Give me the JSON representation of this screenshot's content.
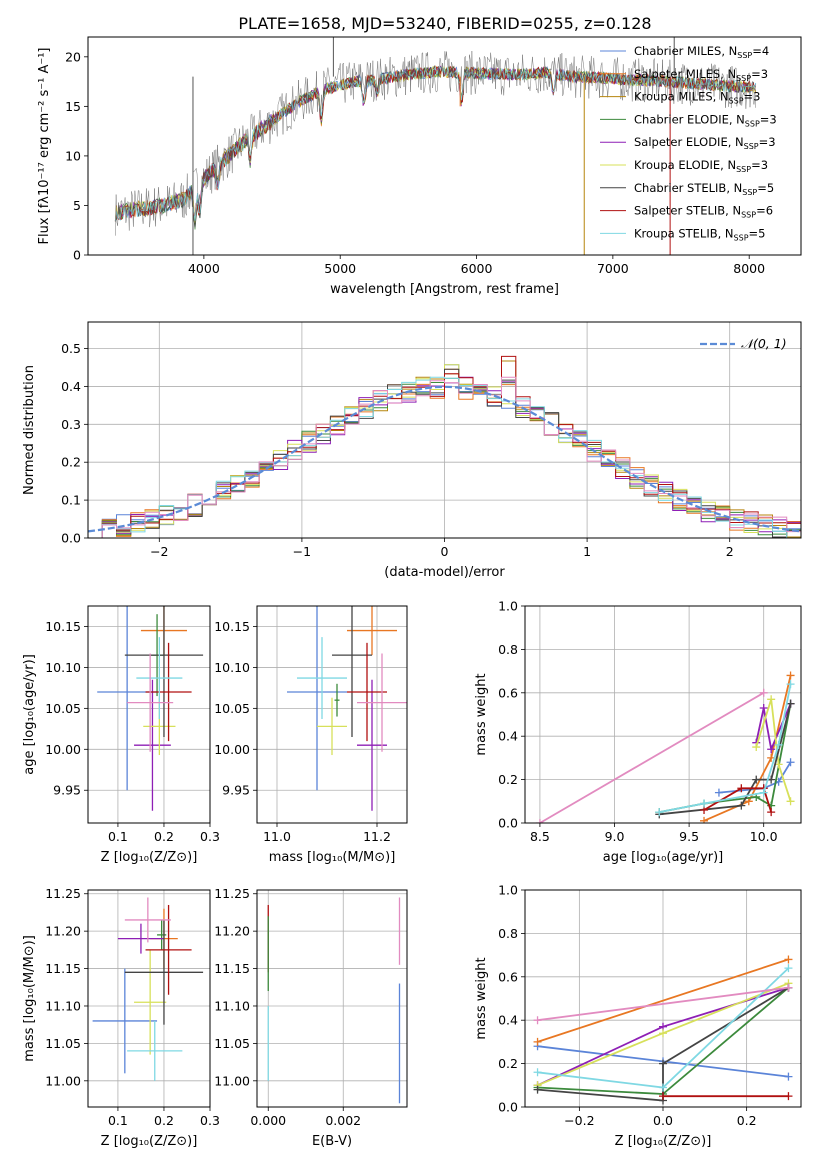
{
  "figure_title": "PLATE=1658, MJD=53240, FIBERID=0255, z=0.128",
  "series_colors": [
    "#5b84d8",
    "#e87722",
    "#b6850d",
    "#3c8a3c",
    "#8e1fb5",
    "#d7e05a",
    "#444444",
    "#b01010",
    "#7fd8e3",
    "#e28bc0"
  ],
  "chart_data": [
    {
      "id": "spectrum",
      "type": "line",
      "title": "PLATE=1658, MJD=53240, FIBERID=0255, z=0.128",
      "xlabel": "wavelength [Angstrom, rest frame]",
      "ylabel": "Flux [fλ10⁻¹⁷ erg cm⁻² s⁻¹ A⁻¹]",
      "xlim": [
        3150,
        8380
      ],
      "ylim": [
        0,
        22
      ],
      "xticks": [
        4000,
        5000,
        6000,
        7000,
        8000
      ],
      "yticks": [
        0,
        5,
        10,
        15,
        20
      ],
      "legend_position": "upper-right",
      "series": [
        {
          "name": "Chabrier MILES, N_SSP=4",
          "label": "Chabrier MILES, N",
          "sub": "SSP",
          "suffix": "=4",
          "color": "#5b84d8"
        },
        {
          "name": "Salpeter MILES, N_SSP=3",
          "label": "Salpeter MILES, N",
          "sub": "SSP",
          "suffix": "=3",
          "color": "#e87722"
        },
        {
          "name": "Kroupa MILES, N_SSP=3",
          "label": "Kroupa MILES, N",
          "sub": "SSP",
          "suffix": "=3",
          "color": "#b6850d"
        },
        {
          "name": "Chabrier ELODIE, N_SSP=3",
          "label": "Chabrier ELODIE, N",
          "sub": "SSP",
          "suffix": "=3",
          "color": "#3c8a3c"
        },
        {
          "name": "Salpeter ELODIE, N_SSP=3",
          "label": "Salpeter ELODIE, N",
          "sub": "SSP",
          "suffix": "=3",
          "color": "#8e1fb5"
        },
        {
          "name": "Kroupa ELODIE, N_SSP=3",
          "label": "Kroupa ELODIE, N",
          "sub": "SSP",
          "suffix": "=3",
          "color": "#d7e05a"
        },
        {
          "name": "Chabrier STELIB, N_SSP=5",
          "label": "Chabrier STELIB, N",
          "sub": "SSP",
          "suffix": "=5",
          "color": "#444444"
        },
        {
          "name": "Salpeter STELIB, N_SSP=6",
          "label": "Salpeter STELIB, N",
          "sub": "SSP",
          "suffix": "=6",
          "color": "#b01010"
        },
        {
          "name": "Kroupa STELIB, N_SSP=5",
          "label": "Kroupa STELIB, N",
          "sub": "SSP",
          "suffix": "=5",
          "color": "#7fd8e3"
        }
      ],
      "continuum": [
        [
          3350,
          4.2
        ],
        [
          3500,
          4.6
        ],
        [
          3700,
          5.0
        ],
        [
          3850,
          5.6
        ],
        [
          3950,
          7.0
        ],
        [
          4100,
          9.0
        ],
        [
          4300,
          11.5
        ],
        [
          4500,
          13.5
        ],
        [
          4700,
          15.5
        ],
        [
          4900,
          16.8
        ],
        [
          5100,
          17.5
        ],
        [
          5300,
          17.8
        ],
        [
          5500,
          18.2
        ],
        [
          5700,
          18.5
        ],
        [
          5900,
          18.4
        ],
        [
          6100,
          18.3
        ],
        [
          6300,
          18.2
        ],
        [
          6500,
          18.4
        ],
        [
          6700,
          18.0
        ],
        [
          6900,
          17.9
        ],
        [
          7100,
          17.7
        ],
        [
          7300,
          17.6
        ],
        [
          7500,
          17.4
        ],
        [
          7700,
          17.2
        ],
        [
          7900,
          17.0
        ],
        [
          8050,
          16.9
        ]
      ]
    },
    {
      "id": "residuals",
      "type": "bar",
      "xlabel": "(data-model)/error",
      "ylabel": "Normed distribution",
      "xlim": [
        -2.5,
        2.5
      ],
      "ylim": [
        0,
        0.57
      ],
      "xticks": [
        -2,
        -1,
        0,
        1,
        2
      ],
      "yticks": [
        0.0,
        0.1,
        0.2,
        0.3,
        0.4,
        0.5
      ],
      "legend": "𝒩(0, 1)",
      "legend_position": "upper-right",
      "grid": true,
      "bin_width": 0.1
    },
    {
      "id": "age-vs-Z",
      "type": "scatter",
      "xlabel": "Z [log₁₀(Z/Z⊙)]",
      "ylabel": "age  [log₁₀(age/yr)]",
      "xlim": [
        0.035,
        0.3
      ],
      "ylim": [
        9.91,
        10.175
      ],
      "xticks": [
        0.1,
        0.2,
        0.3
      ],
      "yticks": [
        9.95,
        10.0,
        10.05,
        10.1,
        10.15
      ],
      "grid": true,
      "points": [
        {
          "x": 0.12,
          "y": 10.07,
          "xerr": 0.065,
          "yerr": 0.12,
          "color": "#5b84d8"
        },
        {
          "x": 0.2,
          "y": 10.145,
          "xerr": 0.05,
          "yerr": 0.03,
          "color": "#e87722"
        },
        {
          "x": 0.185,
          "y": 10.115,
          "xerr": 0.015,
          "yerr": 0.05,
          "color": "#3c8a3c"
        },
        {
          "x": 0.175,
          "y": 10.005,
          "xerr": 0.04,
          "yerr": 0.08,
          "color": "#8e1fb5"
        },
        {
          "x": 0.19,
          "y": 10.028,
          "xerr": 0.035,
          "yerr": 0.035,
          "color": "#d7e05a"
        },
        {
          "x": 0.2,
          "y": 10.115,
          "xerr": 0.085,
          "yerr": 0.1,
          "color": "#444444"
        },
        {
          "x": 0.21,
          "y": 10.07,
          "xerr": 0.05,
          "yerr": 0.06,
          "color": "#b01010"
        },
        {
          "x": 0.19,
          "y": 10.087,
          "xerr": 0.05,
          "yerr": 0.05,
          "color": "#7fd8e3"
        },
        {
          "x": 0.17,
          "y": 10.057,
          "xerr": 0.05,
          "yerr": 0.06,
          "color": "#e28bc0"
        }
      ]
    },
    {
      "id": "age-vs-mass",
      "type": "scatter",
      "xlabel": "mass [log₁₀(M/M⊙)]",
      "ylabel": "",
      "xlim": [
        10.96,
        11.26
      ],
      "ylim": [
        9.91,
        10.175
      ],
      "xticks": [
        11.0,
        11.2
      ],
      "yticks": [
        9.95,
        10.0,
        10.05,
        10.1,
        10.15
      ],
      "grid": true,
      "points": [
        {
          "x": 11.08,
          "y": 10.07,
          "xerr": 0.06,
          "yerr": 0.12,
          "color": "#5b84d8"
        },
        {
          "x": 11.19,
          "y": 10.145,
          "xerr": 0.05,
          "yerr": 0.03,
          "color": "#e87722"
        },
        {
          "x": 11.12,
          "y": 10.06,
          "xerr": 0.005,
          "yerr": 0.02,
          "color": "#3c8a3c"
        },
        {
          "x": 11.19,
          "y": 10.005,
          "xerr": 0.03,
          "yerr": 0.08,
          "color": "#8e1fb5"
        },
        {
          "x": 11.11,
          "y": 10.028,
          "xerr": 0.03,
          "yerr": 0.035,
          "color": "#d7e05a"
        },
        {
          "x": 11.15,
          "y": 10.115,
          "xerr": 0.04,
          "yerr": 0.1,
          "color": "#444444"
        },
        {
          "x": 11.18,
          "y": 10.07,
          "xerr": 0.04,
          "yerr": 0.06,
          "color": "#b01010"
        },
        {
          "x": 11.09,
          "y": 10.087,
          "xerr": 0.05,
          "yerr": 0.05,
          "color": "#7fd8e3"
        },
        {
          "x": 11.21,
          "y": 10.057,
          "xerr": 0.05,
          "yerr": 0.06,
          "color": "#e28bc0"
        }
      ]
    },
    {
      "id": "weight-vs-age",
      "type": "line",
      "xlabel": "age  [log₁₀(age/yr)]",
      "ylabel": "mass weight",
      "xlim": [
        8.4,
        10.25
      ],
      "ylim": [
        0,
        1.0
      ],
      "xticks": [
        8.5,
        9.0,
        9.5,
        10.0
      ],
      "yticks": [
        0.0,
        0.2,
        0.4,
        0.6,
        0.8,
        1.0
      ],
      "grid": true,
      "series": [
        {
          "color": "#5b84d8",
          "points": [
            [
              9.7,
              0.14
            ],
            [
              10.0,
              0.16
            ],
            [
              10.1,
              0.19
            ],
            [
              10.18,
              0.28
            ]
          ]
        },
        {
          "color": "#e87722",
          "points": [
            [
              9.6,
              0.01
            ],
            [
              9.9,
              0.1
            ],
            [
              10.05,
              0.3
            ],
            [
              10.18,
              0.68
            ]
          ]
        },
        {
          "color": "#3c8a3c",
          "points": [
            [
              9.3,
              0.05
            ],
            [
              9.6,
              0.09
            ],
            [
              9.95,
              0.12
            ],
            [
              10.05,
              0.08
            ],
            [
              10.18,
              0.55
            ]
          ]
        },
        {
          "color": "#8e1fb5",
          "points": [
            [
              9.95,
              0.37
            ],
            [
              10.0,
              0.53
            ],
            [
              10.05,
              0.34
            ],
            [
              10.18,
              0.55
            ]
          ]
        },
        {
          "color": "#d7e05a",
          "points": [
            [
              9.95,
              0.35
            ],
            [
              10.05,
              0.57
            ],
            [
              10.1,
              0.27
            ],
            [
              10.18,
              0.1
            ]
          ]
        },
        {
          "color": "#444444",
          "points": [
            [
              9.3,
              0.04
            ],
            [
              9.85,
              0.08
            ],
            [
              9.95,
              0.2
            ],
            [
              10.05,
              0.2
            ],
            [
              10.18,
              0.55
            ]
          ]
        },
        {
          "color": "#b01010",
          "points": [
            [
              9.6,
              0.06
            ],
            [
              9.85,
              0.16
            ],
            [
              10.0,
              0.16
            ],
            [
              10.05,
              0.05
            ]
          ]
        },
        {
          "color": "#7fd8e3",
          "points": [
            [
              9.3,
              0.05
            ],
            [
              9.6,
              0.09
            ],
            [
              10.0,
              0.14
            ],
            [
              10.1,
              0.36
            ],
            [
              10.18,
              0.64
            ]
          ]
        },
        {
          "color": "#e28bc0",
          "points": [
            [
              8.5,
              0.0
            ],
            [
              10.0,
              0.6
            ]
          ]
        }
      ]
    },
    {
      "id": "mass-vs-Z",
      "type": "scatter",
      "xlabel": "Z [log₁₀(Z/Z⊙)]",
      "ylabel": "mass [log₁₀(M/M⊙)]",
      "xlim": [
        0.035,
        0.3
      ],
      "ylim": [
        10.965,
        11.255
      ],
      "xticks": [
        0.1,
        0.2,
        0.3
      ],
      "yticks": [
        11.0,
        11.05,
        11.1,
        11.15,
        11.2,
        11.25
      ],
      "grid": true,
      "points": [
        {
          "x": 0.115,
          "y": 11.08,
          "xerr": 0.07,
          "yerr": 0.07,
          "color": "#5b84d8"
        },
        {
          "x": 0.2,
          "y": 11.19,
          "xerr": 0.03,
          "yerr": 0.04,
          "color": "#e87722"
        },
        {
          "x": 0.195,
          "y": 11.195,
          "xerr": 0.01,
          "yerr": 0.02,
          "color": "#3c8a3c"
        },
        {
          "x": 0.15,
          "y": 11.19,
          "xerr": 0.05,
          "yerr": 0.02,
          "color": "#8e1fb5"
        },
        {
          "x": 0.17,
          "y": 11.105,
          "xerr": 0.035,
          "yerr": 0.07,
          "color": "#d7e05a"
        },
        {
          "x": 0.2,
          "y": 11.145,
          "xerr": 0.085,
          "yerr": 0.07,
          "color": "#444444"
        },
        {
          "x": 0.21,
          "y": 11.175,
          "xerr": 0.05,
          "yerr": 0.06,
          "color": "#b01010"
        },
        {
          "x": 0.18,
          "y": 11.04,
          "xerr": 0.06,
          "yerr": 0.04,
          "color": "#7fd8e3"
        },
        {
          "x": 0.165,
          "y": 11.215,
          "xerr": 0.05,
          "yerr": 0.03,
          "color": "#e28bc0"
        }
      ]
    },
    {
      "id": "mass-vs-ebv",
      "type": "scatter",
      "xlabel": "E(B-V)",
      "ylabel": "",
      "xlim": [
        -0.0003,
        0.0037
      ],
      "ylim": [
        10.965,
        11.255
      ],
      "xticks": [
        0.0,
        0.002
      ],
      "yticks": [
        11.0,
        11.05,
        11.1,
        11.15,
        11.2,
        11.25
      ],
      "grid": true,
      "points": [
        {
          "x": 0.0035,
          "y": 11.05,
          "xerr": 0,
          "yerr": 0.08,
          "color": "#5b84d8"
        },
        {
          "x": 0.0,
          "y": 11.19,
          "xerr": 0,
          "yerr": 0.045,
          "color": "#b01010"
        },
        {
          "x": 0.0,
          "y": 11.17,
          "xerr": 0,
          "yerr": 0.05,
          "color": "#3c8a3c"
        },
        {
          "x": 0.0,
          "y": 11.05,
          "xerr": 0,
          "yerr": 0.05,
          "color": "#7fd8e3"
        },
        {
          "x": 0.0035,
          "y": 11.2,
          "xerr": 0,
          "yerr": 0.045,
          "color": "#e28bc0"
        }
      ]
    },
    {
      "id": "weight-vs-Z",
      "type": "line",
      "xlabel": "Z [log₁₀(Z/Z⊙)]",
      "ylabel": "mass weight",
      "xlim": [
        -0.33,
        0.33
      ],
      "ylim": [
        0,
        1.0
      ],
      "xticks": [
        -0.2,
        0.0,
        0.2
      ],
      "yticks": [
        0.0,
        0.2,
        0.4,
        0.6,
        0.8,
        1.0
      ],
      "grid": true,
      "series": [
        {
          "color": "#5b84d8",
          "points": [
            [
              -0.3,
              0.28
            ],
            [
              0.0,
              0.21
            ],
            [
              0.3,
              0.14
            ]
          ]
        },
        {
          "color": "#e87722",
          "points": [
            [
              -0.3,
              0.3
            ],
            [
              0.3,
              0.68
            ]
          ]
        },
        {
          "color": "#3c8a3c",
          "points": [
            [
              -0.3,
              0.09
            ],
            [
              0.0,
              0.06
            ],
            [
              0.3,
              0.55
            ]
          ]
        },
        {
          "color": "#8e1fb5",
          "points": [
            [
              -0.3,
              0.1
            ],
            [
              0.0,
              0.37
            ],
            [
              0.3,
              0.55
            ]
          ]
        },
        {
          "color": "#d7e05a",
          "points": [
            [
              -0.3,
              0.1
            ],
            [
              0.0,
              0.34
            ],
            [
              0.3,
              0.57
            ]
          ]
        },
        {
          "color": "#444444",
          "points": [
            [
              -0.3,
              0.08
            ],
            [
              0.0,
              0.03
            ],
            [
              0.0,
              0.2
            ],
            [
              0.3,
              0.55
            ]
          ]
        },
        {
          "color": "#b01010",
          "points": [
            [
              0.0,
              0.05
            ],
            [
              0.3,
              0.05
            ]
          ]
        },
        {
          "color": "#7fd8e3",
          "points": [
            [
              -0.3,
              0.16
            ],
            [
              0.0,
              0.09
            ],
            [
              0.3,
              0.64
            ]
          ]
        },
        {
          "color": "#e28bc0",
          "points": [
            [
              -0.3,
              0.4
            ],
            [
              0.3,
              0.55
            ]
          ]
        }
      ]
    }
  ]
}
